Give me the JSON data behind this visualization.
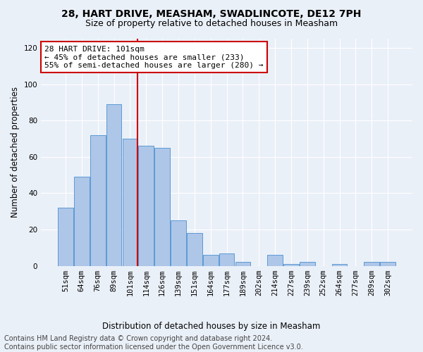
{
  "title1": "28, HART DRIVE, MEASHAM, SWADLINCOTE, DE12 7PH",
  "title2": "Size of property relative to detached houses in Measham",
  "xlabel": "Distribution of detached houses by size in Measham",
  "ylabel": "Number of detached properties",
  "categories": [
    "51sqm",
    "64sqm",
    "76sqm",
    "89sqm",
    "101sqm",
    "114sqm",
    "126sqm",
    "139sqm",
    "151sqm",
    "164sqm",
    "177sqm",
    "189sqm",
    "202sqm",
    "214sqm",
    "227sqm",
    "239sqm",
    "252sqm",
    "264sqm",
    "277sqm",
    "289sqm",
    "302sqm"
  ],
  "values": [
    32,
    49,
    72,
    89,
    70,
    66,
    65,
    25,
    18,
    6,
    7,
    2,
    0,
    6,
    1,
    2,
    0,
    1,
    0,
    2,
    2
  ],
  "bar_color": "#aec6e8",
  "bar_edge_color": "#5b9bd5",
  "vline_index": 4,
  "vline_color": "#cc0000",
  "annotation_text": "28 HART DRIVE: 101sqm\n← 45% of detached houses are smaller (233)\n55% of semi-detached houses are larger (280) →",
  "annotation_box_color": "white",
  "annotation_box_edge_color": "#cc0000",
  "ylim": [
    0,
    125
  ],
  "yticks": [
    0,
    20,
    40,
    60,
    80,
    100,
    120
  ],
  "bg_color": "#eaf0f8",
  "footer_text": "Contains HM Land Registry data © Crown copyright and database right 2024.\nContains public sector information licensed under the Open Government Licence v3.0.",
  "title_fontsize": 10,
  "subtitle_fontsize": 9,
  "axis_label_fontsize": 8.5,
  "tick_fontsize": 7.5,
  "annotation_fontsize": 8,
  "footer_fontsize": 7
}
